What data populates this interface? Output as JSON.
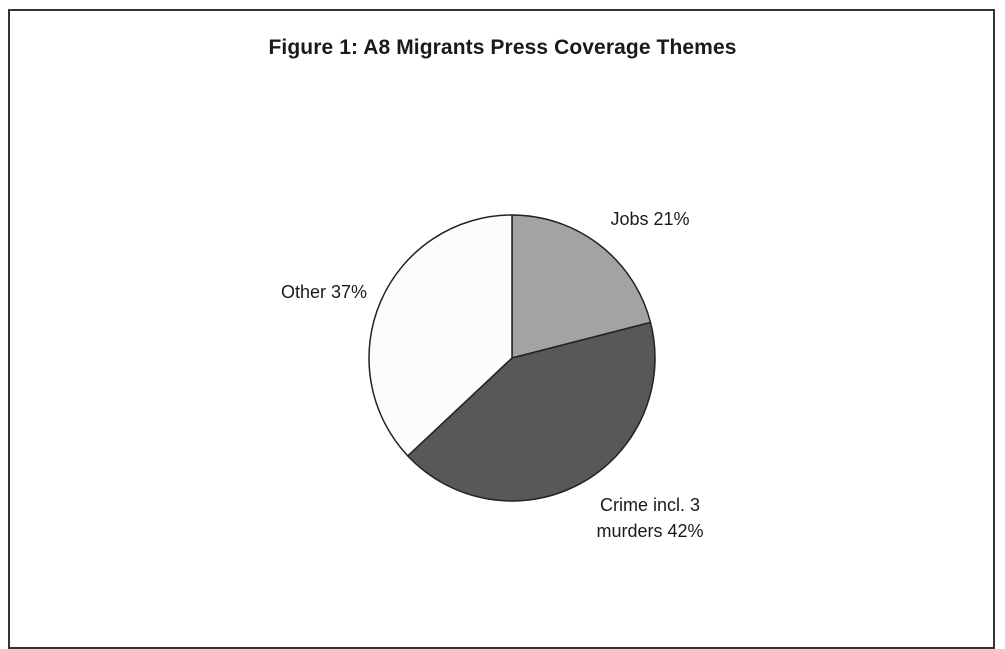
{
  "chart_data": {
    "type": "pie",
    "title": "Figure 1: A8 Migrants Press Coverage Themes",
    "slices": [
      {
        "label_lines": [
          "Jobs 21%"
        ],
        "value": 21,
        "color": "#a3a3a5"
      },
      {
        "label_lines": [
          "Crime incl. 3",
          "murders 42%"
        ],
        "value": 42,
        "color": "#58585a"
      },
      {
        "label_lines": [
          "Other 37%"
        ],
        "value": 37,
        "color": "#fcfcfc"
      }
    ],
    "start": "12 o'clock",
    "direction": "clockwise",
    "legend": "none"
  }
}
